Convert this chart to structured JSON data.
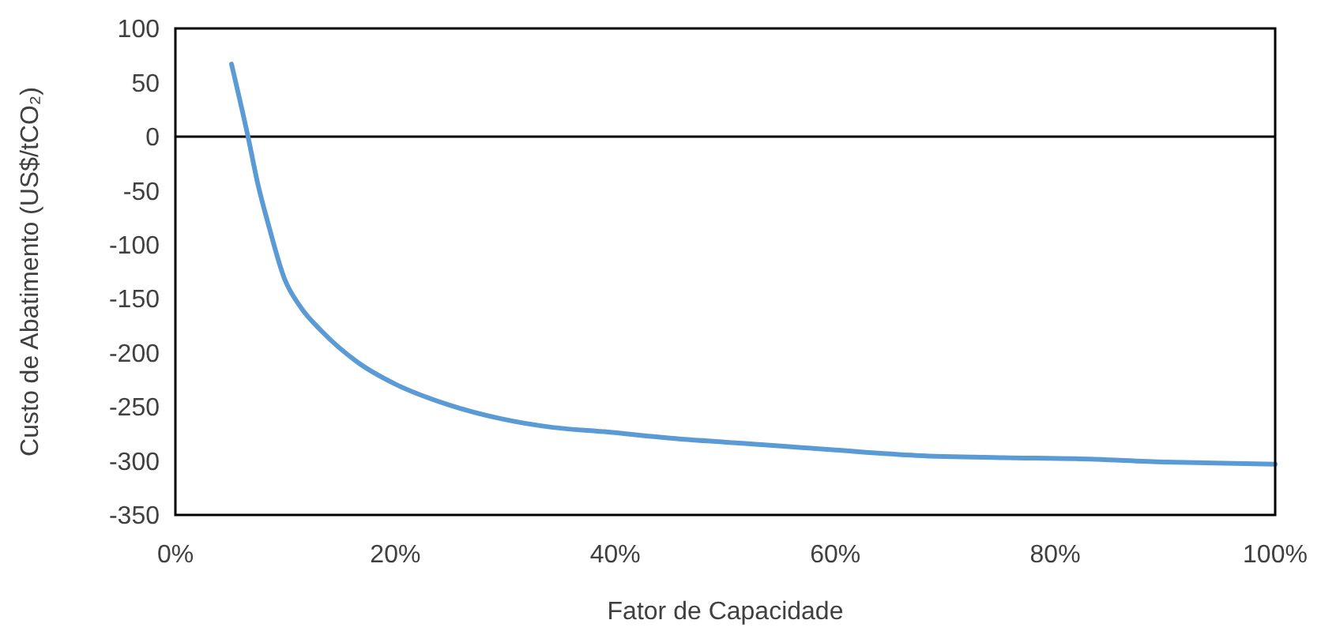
{
  "chart_data": {
    "type": "line",
    "xlabel": "Fator de Capacidade",
    "ylabel": "Custo de Abatimento (US$/tCO₂)",
    "x": [
      5.1,
      6.6,
      7.5,
      8.5,
      9.9,
      11.4,
      13.3,
      16.6,
      20,
      24.8,
      29.6,
      34.3,
      39,
      45,
      53.3,
      60,
      67.4,
      75,
      81.8,
      90,
      100
    ],
    "series": [
      {
        "color": "#5b9bd5",
        "values": [
          67,
          0,
          -44,
          -83,
          -131,
          -158,
          -180,
          -209,
          -229,
          -248,
          -261,
          -269,
          -273,
          -279,
          -285,
          -290,
          -295,
          -297,
          -298,
          -301,
          -303
        ]
      }
    ],
    "xlim": [
      0,
      100
    ],
    "xticks": [
      {
        "value": 0,
        "label": "0%"
      },
      {
        "value": 20,
        "label": "20%"
      },
      {
        "value": 40,
        "label": "40%"
      },
      {
        "value": 60,
        "label": "60%"
      },
      {
        "value": 80,
        "label": "80%"
      },
      {
        "value": 100,
        "label": "100%"
      }
    ],
    "ylim": [
      -350,
      100
    ],
    "yticks": [
      -350,
      -300,
      -250,
      -200,
      -150,
      -100,
      -50,
      0,
      50,
      100
    ],
    "ref_lines": [
      {
        "axis": "y",
        "value": 0,
        "color": "#000000"
      }
    ],
    "marker": "none",
    "line_style": "solid"
  }
}
